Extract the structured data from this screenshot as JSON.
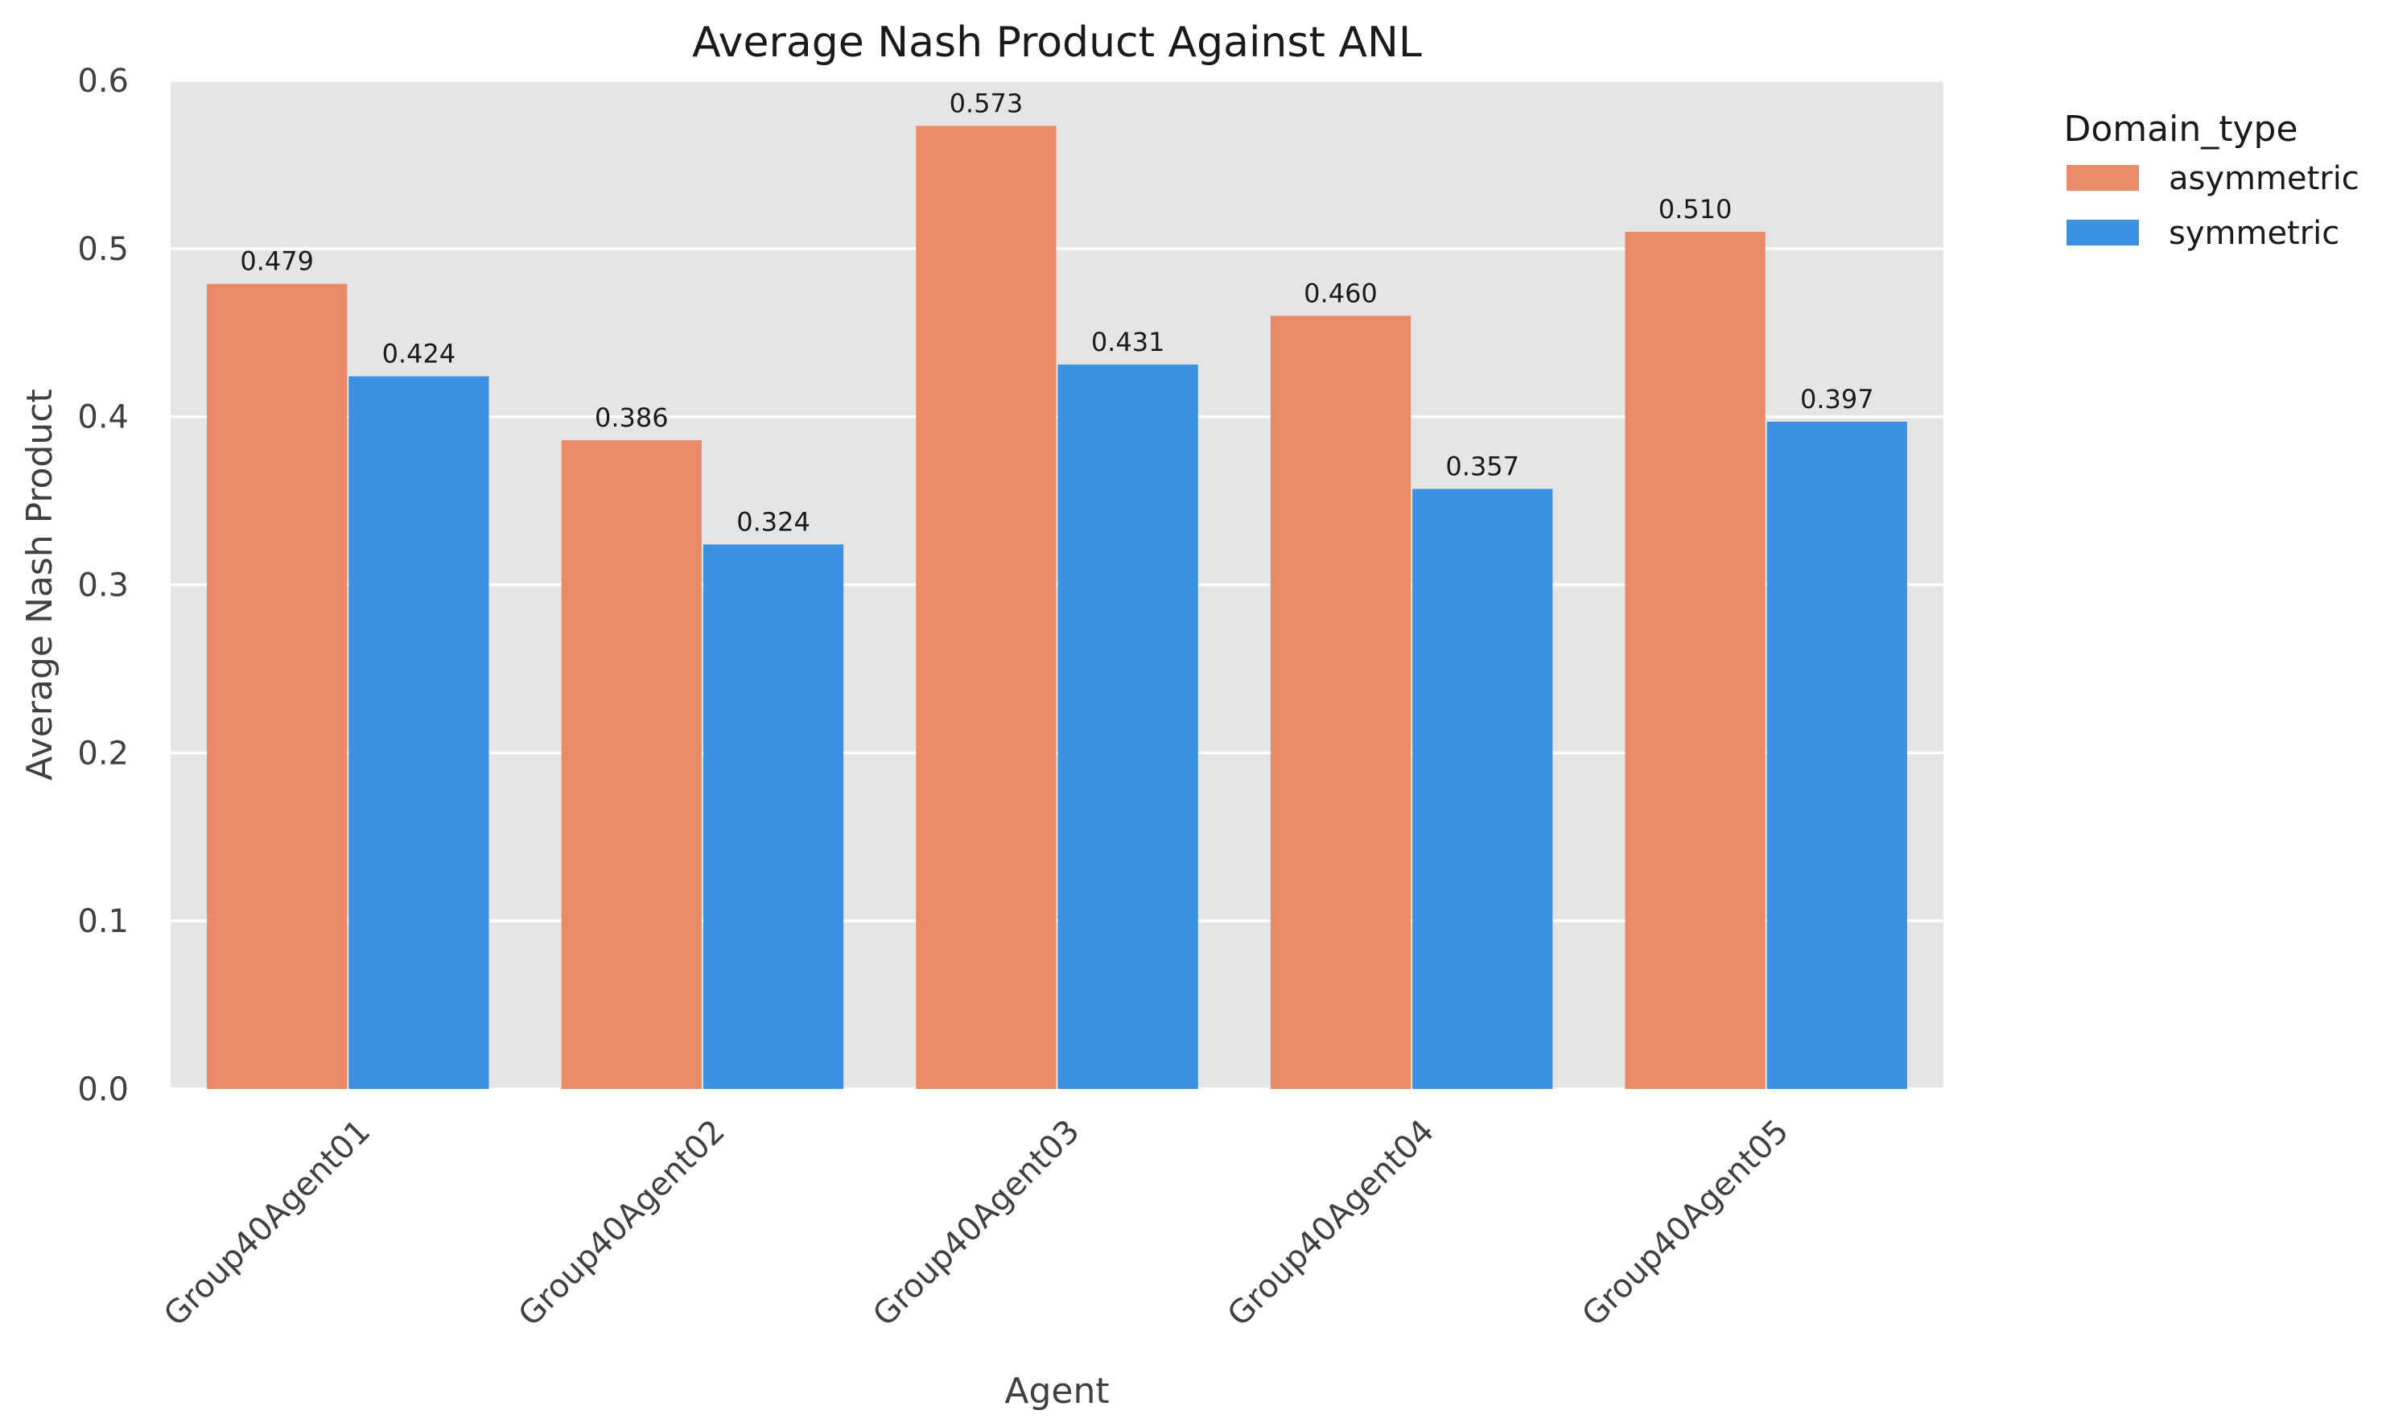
{
  "chart_data": {
    "type": "bar",
    "title": "Average Nash Product Against ANL",
    "xlabel": "Agent",
    "ylabel": "Average Nash Product",
    "categories": [
      "Group40Agent01",
      "Group40Agent02",
      "Group40Agent03",
      "Group40Agent04",
      "Group40Agent05"
    ],
    "series": [
      {
        "name": "asymmetric",
        "values": [
          0.479,
          0.386,
          0.573,
          0.46,
          0.51
        ],
        "color": "#EA8A67"
      },
      {
        "name": "symmetric",
        "values": [
          0.424,
          0.324,
          0.431,
          0.357,
          0.397
        ],
        "color": "#3D91E3"
      }
    ],
    "data_labels": [
      [
        "0.479",
        "0.386",
        "0.573",
        "0.460",
        "0.510"
      ],
      [
        "0.424",
        "0.324",
        "0.431",
        "0.357",
        "0.397"
      ]
    ],
    "ylim": [
      0,
      0.6
    ],
    "yticks": [
      0.0,
      0.1,
      0.2,
      0.3,
      0.4,
      0.5,
      0.6
    ],
    "ytick_labels": [
      "0.0",
      "0.1",
      "0.2",
      "0.3",
      "0.4",
      "0.5",
      "0.6"
    ],
    "grid": true,
    "grid_axis": "y",
    "background_color": "#E5E5E5",
    "grid_color": "#FFFFFF",
    "legend": {
      "title": "Domain_type",
      "placement": "outside-top-right"
    },
    "xtick_rotation": 45
  }
}
